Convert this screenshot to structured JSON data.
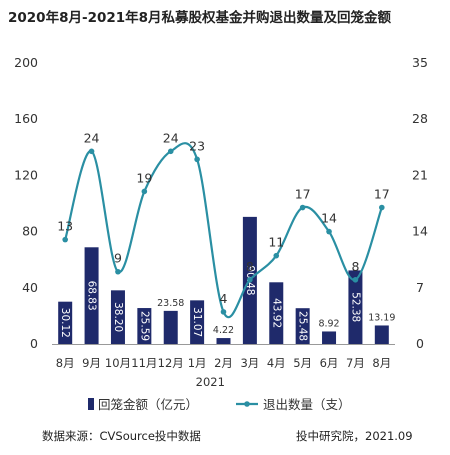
{
  "title": "2020年8月-2021年8月私募股权基金并购退出数量及回笼金额",
  "source_text": "数据来源：CVSource投中数据",
  "credit_text": "投中研究院，2021.09",
  "colors": {
    "bar": "#1f2a6b",
    "line": "#2a8fa3",
    "axis": "#999999",
    "text": "#333333",
    "bar_label": "#ffffff"
  },
  "chart_data": {
    "type": "bar+line",
    "categories": [
      "8月",
      "9月",
      "10月",
      "11月",
      "12月",
      "1月",
      "2月",
      "3月",
      "4月",
      "5月",
      "6月",
      "7月",
      "8月"
    ],
    "year_label": "2021",
    "series": [
      {
        "name": "回笼金额（亿元）",
        "type": "bar",
        "axis": "left",
        "values": [
          30.12,
          68.83,
          38.2,
          25.59,
          23.58,
          31.07,
          4.22,
          90.48,
          43.92,
          25.48,
          8.92,
          52.38,
          13.19
        ],
        "labels": [
          "30.12",
          "68.83",
          "38.20",
          "25.59",
          "23.58",
          "31.07",
          "4.22",
          "90.48",
          "43.92",
          "25.48",
          "8.92",
          "52.38",
          "13.19"
        ]
      },
      {
        "name": "退出数量（支）",
        "type": "line",
        "axis": "right",
        "values": [
          13,
          24,
          9,
          19,
          24,
          23,
          4,
          8,
          11,
          17,
          14,
          8,
          17
        ]
      }
    ],
    "y_left": {
      "ticks": [
        "0",
        "40",
        "80",
        "120",
        "160",
        "200"
      ],
      "range": [
        0,
        200
      ]
    },
    "y_right": {
      "ticks": [
        "0",
        "7",
        "14",
        "21",
        "28",
        "35"
      ],
      "range": [
        0,
        35
      ]
    }
  }
}
